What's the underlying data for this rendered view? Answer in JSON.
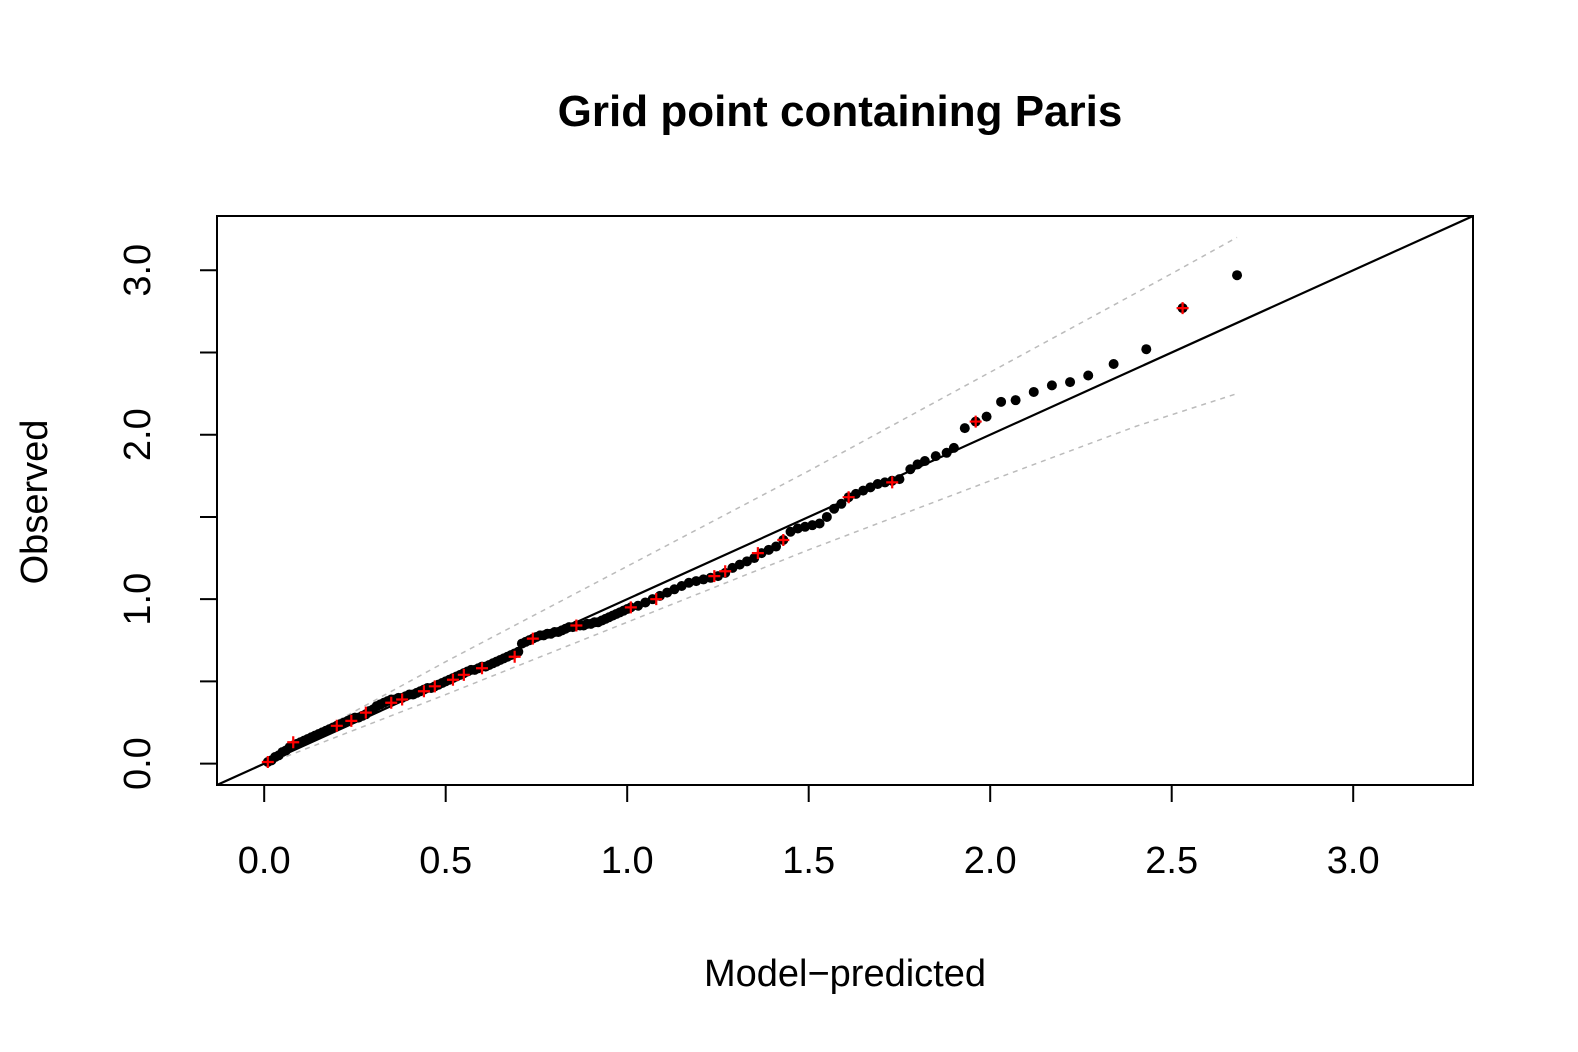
{
  "chart_data": {
    "type": "scatter",
    "title": "Grid point containing Paris",
    "xlabel": "Model−predicted",
    "ylabel": "Observed",
    "xlim": [
      -0.13,
      3.33
    ],
    "ylim": [
      -0.13,
      3.33
    ],
    "x_ticks": [
      0.0,
      0.5,
      1.0,
      1.5,
      2.0,
      2.5,
      3.0
    ],
    "x_tick_labels": [
      "0.0",
      "0.5",
      "1.0",
      "1.5",
      "2.0",
      "2.5",
      "3.0"
    ],
    "y_ticks": [
      0.0,
      0.5,
      1.0,
      1.5,
      2.0,
      2.5,
      3.0
    ],
    "y_tick_labels": [
      "0.0",
      "1.0",
      "2.0",
      "3.0"
    ],
    "y_label_ticks": [
      0.0,
      1.0,
      2.0,
      3.0
    ],
    "grid": false,
    "reference_line": {
      "slope": 1,
      "intercept": 0
    },
    "series": [
      {
        "marker": "dot",
        "color": "#000000",
        "points": [
          [
            0.01,
            0.01
          ],
          [
            0.02,
            0.02
          ],
          [
            0.03,
            0.04
          ],
          [
            0.04,
            0.05
          ],
          [
            0.05,
            0.07
          ],
          [
            0.06,
            0.08
          ],
          [
            0.07,
            0.1
          ],
          [
            0.08,
            0.11
          ],
          [
            0.09,
            0.12
          ],
          [
            0.1,
            0.13
          ],
          [
            0.11,
            0.14
          ],
          [
            0.12,
            0.15
          ],
          [
            0.13,
            0.16
          ],
          [
            0.14,
            0.17
          ],
          [
            0.15,
            0.18
          ],
          [
            0.16,
            0.19
          ],
          [
            0.17,
            0.2
          ],
          [
            0.18,
            0.21
          ],
          [
            0.19,
            0.22
          ],
          [
            0.2,
            0.23
          ],
          [
            0.21,
            0.24
          ],
          [
            0.22,
            0.25
          ],
          [
            0.23,
            0.26
          ],
          [
            0.24,
            0.27
          ],
          [
            0.25,
            0.28
          ],
          [
            0.26,
            0.28
          ],
          [
            0.27,
            0.29
          ],
          [
            0.28,
            0.3
          ],
          [
            0.29,
            0.32
          ],
          [
            0.3,
            0.33
          ],
          [
            0.31,
            0.35
          ],
          [
            0.32,
            0.36
          ],
          [
            0.33,
            0.37
          ],
          [
            0.34,
            0.38
          ],
          [
            0.35,
            0.39
          ],
          [
            0.36,
            0.39
          ],
          [
            0.37,
            0.4
          ],
          [
            0.38,
            0.4
          ],
          [
            0.39,
            0.41
          ],
          [
            0.4,
            0.42
          ],
          [
            0.41,
            0.42
          ],
          [
            0.42,
            0.43
          ],
          [
            0.43,
            0.44
          ],
          [
            0.44,
            0.45
          ],
          [
            0.45,
            0.46
          ],
          [
            0.46,
            0.46
          ],
          [
            0.47,
            0.47
          ],
          [
            0.48,
            0.48
          ],
          [
            0.49,
            0.49
          ],
          [
            0.5,
            0.5
          ],
          [
            0.51,
            0.51
          ],
          [
            0.52,
            0.52
          ],
          [
            0.53,
            0.53
          ],
          [
            0.54,
            0.54
          ],
          [
            0.55,
            0.55
          ],
          [
            0.56,
            0.56
          ],
          [
            0.57,
            0.57
          ],
          [
            0.58,
            0.57
          ],
          [
            0.59,
            0.58
          ],
          [
            0.6,
            0.59
          ],
          [
            0.61,
            0.59
          ],
          [
            0.62,
            0.6
          ],
          [
            0.63,
            0.61
          ],
          [
            0.64,
            0.62
          ],
          [
            0.65,
            0.63
          ],
          [
            0.66,
            0.64
          ],
          [
            0.67,
            0.65
          ],
          [
            0.68,
            0.66
          ],
          [
            0.69,
            0.67
          ],
          [
            0.7,
            0.68
          ],
          [
            0.71,
            0.73
          ],
          [
            0.72,
            0.74
          ],
          [
            0.73,
            0.75
          ],
          [
            0.74,
            0.76
          ],
          [
            0.75,
            0.77
          ],
          [
            0.76,
            0.78
          ],
          [
            0.77,
            0.78
          ],
          [
            0.78,
            0.79
          ],
          [
            0.79,
            0.79
          ],
          [
            0.8,
            0.8
          ],
          [
            0.81,
            0.8
          ],
          [
            0.82,
            0.81
          ],
          [
            0.83,
            0.82
          ],
          [
            0.84,
            0.83
          ],
          [
            0.85,
            0.83
          ],
          [
            0.86,
            0.84
          ],
          [
            0.87,
            0.84
          ],
          [
            0.88,
            0.84
          ],
          [
            0.89,
            0.85
          ],
          [
            0.9,
            0.85
          ],
          [
            0.91,
            0.86
          ],
          [
            0.92,
            0.86
          ],
          [
            0.93,
            0.87
          ],
          [
            0.94,
            0.88
          ],
          [
            0.95,
            0.89
          ],
          [
            0.96,
            0.9
          ],
          [
            0.97,
            0.91
          ],
          [
            0.98,
            0.92
          ],
          [
            0.99,
            0.93
          ],
          [
            1.0,
            0.94
          ],
          [
            1.01,
            0.95
          ],
          [
            1.03,
            0.96
          ],
          [
            1.05,
            0.98
          ],
          [
            1.07,
            1.0
          ],
          [
            1.09,
            1.02
          ],
          [
            1.11,
            1.04
          ],
          [
            1.13,
            1.06
          ],
          [
            1.15,
            1.08
          ],
          [
            1.17,
            1.1
          ],
          [
            1.19,
            1.11
          ],
          [
            1.21,
            1.12
          ],
          [
            1.23,
            1.13
          ],
          [
            1.25,
            1.14
          ],
          [
            1.27,
            1.16
          ],
          [
            1.29,
            1.19
          ],
          [
            1.31,
            1.21
          ],
          [
            1.33,
            1.23
          ],
          [
            1.35,
            1.25
          ],
          [
            1.37,
            1.28
          ],
          [
            1.39,
            1.3
          ],
          [
            1.41,
            1.32
          ],
          [
            1.43,
            1.36
          ],
          [
            1.45,
            1.41
          ],
          [
            1.47,
            1.43
          ],
          [
            1.49,
            1.44
          ],
          [
            1.51,
            1.45
          ],
          [
            1.53,
            1.46
          ],
          [
            1.55,
            1.5
          ],
          [
            1.57,
            1.55
          ],
          [
            1.59,
            1.58
          ],
          [
            1.61,
            1.62
          ],
          [
            1.63,
            1.64
          ],
          [
            1.65,
            1.66
          ],
          [
            1.67,
            1.68
          ],
          [
            1.69,
            1.7
          ],
          [
            1.71,
            1.71
          ],
          [
            1.73,
            1.72
          ],
          [
            1.75,
            1.73
          ],
          [
            1.78,
            1.79
          ],
          [
            1.8,
            1.82
          ],
          [
            1.82,
            1.84
          ],
          [
            1.85,
            1.87
          ],
          [
            1.88,
            1.89
          ],
          [
            1.9,
            1.92
          ],
          [
            1.93,
            2.04
          ],
          [
            1.96,
            2.08
          ],
          [
            1.99,
            2.11
          ],
          [
            2.03,
            2.2
          ],
          [
            2.07,
            2.21
          ],
          [
            2.12,
            2.26
          ],
          [
            2.17,
            2.3
          ],
          [
            2.22,
            2.32
          ],
          [
            2.27,
            2.36
          ],
          [
            2.34,
            2.43
          ],
          [
            2.43,
            2.52
          ],
          [
            2.53,
            2.77
          ],
          [
            2.68,
            2.97
          ]
        ]
      },
      {
        "marker": "cross",
        "color": "#ff0000",
        "points": [
          [
            0.01,
            0.01
          ],
          [
            0.08,
            0.13
          ],
          [
            0.2,
            0.23
          ],
          [
            0.24,
            0.26
          ],
          [
            0.28,
            0.31
          ],
          [
            0.35,
            0.37
          ],
          [
            0.38,
            0.39
          ],
          [
            0.44,
            0.44
          ],
          [
            0.47,
            0.47
          ],
          [
            0.52,
            0.51
          ],
          [
            0.55,
            0.54
          ],
          [
            0.6,
            0.58
          ],
          [
            0.69,
            0.65
          ],
          [
            0.74,
            0.76
          ],
          [
            0.86,
            0.84
          ],
          [
            1.01,
            0.95
          ],
          [
            1.08,
            1.0
          ],
          [
            1.24,
            1.14
          ],
          [
            1.27,
            1.17
          ],
          [
            1.36,
            1.28
          ],
          [
            1.43,
            1.36
          ],
          [
            1.61,
            1.62
          ],
          [
            1.73,
            1.71
          ],
          [
            1.96,
            2.08
          ],
          [
            2.53,
            2.77
          ]
        ]
      }
    ],
    "envelope": {
      "style": "dashed",
      "color": "#bbbbbb",
      "upper": [
        [
          0.01,
          0.03
        ],
        [
          0.5,
          0.62
        ],
        [
          1.0,
          1.2
        ],
        [
          1.5,
          1.78
        ],
        [
          2.0,
          2.38
        ],
        [
          2.5,
          2.98
        ],
        [
          2.68,
          3.2
        ]
      ],
      "lower": [
        [
          0.01,
          0.0
        ],
        [
          0.5,
          0.42
        ],
        [
          1.0,
          0.86
        ],
        [
          1.5,
          1.3
        ],
        [
          2.0,
          1.72
        ],
        [
          2.4,
          2.05
        ],
        [
          2.68,
          2.25
        ]
      ]
    }
  }
}
